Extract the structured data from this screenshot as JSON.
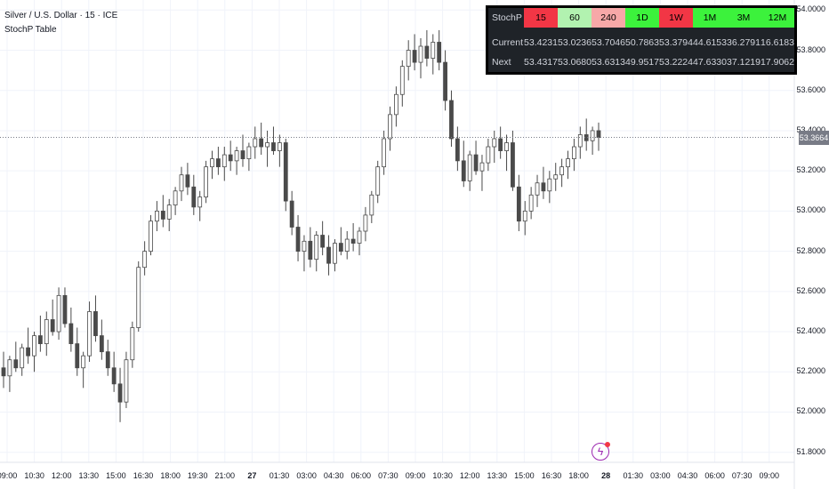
{
  "header": {
    "symbol": "Silver / U.S. Dollar · 15 · ICE",
    "indicator": "StochP Table"
  },
  "table": {
    "corner": "StochP",
    "timeframes": [
      {
        "label": "15",
        "color": "#f23645"
      },
      {
        "label": "60",
        "color": "#b2f2b0"
      },
      {
        "label": "240",
        "color": "#f7a8a8"
      },
      {
        "label": "1D",
        "color": "#3cf23c"
      },
      {
        "label": "1W",
        "color": "#f23645"
      },
      {
        "label": "1M",
        "color": "#3cf23c"
      },
      {
        "label": "3M",
        "color": "#3cf23c"
      },
      {
        "label": "12M",
        "color": "#3cf23c"
      }
    ],
    "rows": [
      {
        "label": "Current",
        "values": [
          "53.4231",
          "53.0236",
          "53.7046",
          "50.7863",
          "53.3794",
          "44.6153",
          "36.2791",
          "16.6183"
        ]
      },
      {
        "label": "Next",
        "values": [
          "53.4317",
          "53.0680",
          "53.6313",
          "49.9517",
          "53.2224",
          "47.6330",
          "37.1219",
          "17.9062"
        ]
      }
    ]
  },
  "price_axis": [
    "54.0000",
    "53.8000",
    "53.6000",
    "53.4000",
    "53.2000",
    "53.0000",
    "52.8000",
    "52.6000",
    "52.4000",
    "52.2000",
    "52.0000",
    "51.8000"
  ],
  "current_price": "53.3664",
  "time_axis": [
    "09:00",
    "10:30",
    "12:00",
    "13:30",
    "15:00",
    "16:30",
    "18:00",
    "19:30",
    "21:00",
    "27",
    "01:30",
    "03:00",
    "04:30",
    "06:00",
    "07:30",
    "09:00",
    "10:30",
    "12:00",
    "13:30",
    "15:00",
    "16:30",
    "18:00",
    "28",
    "01:30",
    "03:00",
    "04:30",
    "06:00",
    "07:30",
    "09:00"
  ],
  "chart_data": {
    "type": "candlestick",
    "ylim": [
      51.75,
      54.05
    ],
    "price_axis_ticks": [
      54.0,
      53.8,
      53.6,
      53.4,
      53.2,
      53.0,
      52.8,
      52.6,
      52.4,
      52.2,
      52.0,
      51.8
    ],
    "candles": [
      [
        52.22,
        52.3,
        52.12,
        52.18
      ],
      [
        52.18,
        52.28,
        52.1,
        52.26
      ],
      [
        52.26,
        52.35,
        52.2,
        52.22
      ],
      [
        52.22,
        52.34,
        52.18,
        52.32
      ],
      [
        52.32,
        52.42,
        52.24,
        52.28
      ],
      [
        52.28,
        52.4,
        52.2,
        52.38
      ],
      [
        52.38,
        52.48,
        52.3,
        52.34
      ],
      [
        52.34,
        52.5,
        52.28,
        52.46
      ],
      [
        52.46,
        52.56,
        52.38,
        52.4
      ],
      [
        52.4,
        52.62,
        52.36,
        52.58
      ],
      [
        52.58,
        52.62,
        52.42,
        52.44
      ],
      [
        52.44,
        52.52,
        52.3,
        52.34
      ],
      [
        52.34,
        52.42,
        52.18,
        52.22
      ],
      [
        52.22,
        52.3,
        52.12,
        52.28
      ],
      [
        52.28,
        52.55,
        52.25,
        52.5
      ],
      [
        52.5,
        52.58,
        52.35,
        52.38
      ],
      [
        52.38,
        52.46,
        52.26,
        52.3
      ],
      [
        52.3,
        52.36,
        52.18,
        52.22
      ],
      [
        52.22,
        52.3,
        52.1,
        52.14
      ],
      [
        52.14,
        52.22,
        51.95,
        52.05
      ],
      [
        52.05,
        52.3,
        52.02,
        52.26
      ],
      [
        52.26,
        52.45,
        52.22,
        52.42
      ],
      [
        52.42,
        52.75,
        52.4,
        52.72
      ],
      [
        52.72,
        52.85,
        52.68,
        52.8
      ],
      [
        52.8,
        52.98,
        52.78,
        52.95
      ],
      [
        52.95,
        53.05,
        52.9,
        53.0
      ],
      [
        53.0,
        53.08,
        52.92,
        52.96
      ],
      [
        52.96,
        53.06,
        52.9,
        53.03
      ],
      [
        53.03,
        53.12,
        52.98,
        53.1
      ],
      [
        53.1,
        53.22,
        53.05,
        53.18
      ],
      [
        53.18,
        53.24,
        53.08,
        53.12
      ],
      [
        53.12,
        53.18,
        52.98,
        53.02
      ],
      [
        53.02,
        53.1,
        52.95,
        53.07
      ],
      [
        53.07,
        53.25,
        53.04,
        53.22
      ],
      [
        53.22,
        53.3,
        53.16,
        53.26
      ],
      [
        53.26,
        53.32,
        53.18,
        53.22
      ],
      [
        53.22,
        53.32,
        53.15,
        53.28
      ],
      [
        53.28,
        53.35,
        53.2,
        53.25
      ],
      [
        53.25,
        53.32,
        53.18,
        53.3
      ],
      [
        53.3,
        53.38,
        53.22,
        53.26
      ],
      [
        53.26,
        53.34,
        53.2,
        53.32
      ],
      [
        53.32,
        53.42,
        53.26,
        53.36
      ],
      [
        53.36,
        53.44,
        53.28,
        53.32
      ],
      [
        53.32,
        53.4,
        53.22,
        53.34
      ],
      [
        53.34,
        53.42,
        53.28,
        53.3
      ],
      [
        53.3,
        53.38,
        53.22,
        53.34
      ],
      [
        53.34,
        53.36,
        53.0,
        53.05
      ],
      [
        53.05,
        53.1,
        52.88,
        52.92
      ],
      [
        52.92,
        52.98,
        52.75,
        52.8
      ],
      [
        52.8,
        52.88,
        52.7,
        52.85
      ],
      [
        52.85,
        52.92,
        52.72,
        52.76
      ],
      [
        52.76,
        52.9,
        52.7,
        52.88
      ],
      [
        52.88,
        52.95,
        52.78,
        52.82
      ],
      [
        52.82,
        52.88,
        52.68,
        52.74
      ],
      [
        52.74,
        52.86,
        52.7,
        52.84
      ],
      [
        52.84,
        52.92,
        52.78,
        52.8
      ],
      [
        52.8,
        52.9,
        52.76,
        52.86
      ],
      [
        52.86,
        52.94,
        52.8,
        52.84
      ],
      [
        52.84,
        52.92,
        52.78,
        52.9
      ],
      [
        52.9,
        53.02,
        52.85,
        52.98
      ],
      [
        52.98,
        53.1,
        52.94,
        53.08
      ],
      [
        53.08,
        53.25,
        53.04,
        53.22
      ],
      [
        53.22,
        53.4,
        53.18,
        53.36
      ],
      [
        53.36,
        53.52,
        53.3,
        53.48
      ],
      [
        53.48,
        53.62,
        53.42,
        53.58
      ],
      [
        53.58,
        53.75,
        53.52,
        53.72
      ],
      [
        53.72,
        53.85,
        53.65,
        53.8
      ],
      [
        53.8,
        53.88,
        53.7,
        53.74
      ],
      [
        53.74,
        53.86,
        53.66,
        53.82
      ],
      [
        53.82,
        53.9,
        53.72,
        53.76
      ],
      [
        53.76,
        53.88,
        53.68,
        53.84
      ],
      [
        53.84,
        53.9,
        53.7,
        53.74
      ],
      [
        53.74,
        53.8,
        53.5,
        53.55
      ],
      [
        53.55,
        53.6,
        53.32,
        53.36
      ],
      [
        53.36,
        53.42,
        53.2,
        53.25
      ],
      [
        53.25,
        53.35,
        53.12,
        53.15
      ],
      [
        53.15,
        53.3,
        53.1,
        53.28
      ],
      [
        53.28,
        53.35,
        53.18,
        53.2
      ],
      [
        53.2,
        53.28,
        53.1,
        53.24
      ],
      [
        53.24,
        53.36,
        53.2,
        53.32
      ],
      [
        53.32,
        53.4,
        53.24,
        53.36
      ],
      [
        53.36,
        53.42,
        53.26,
        53.3
      ],
      [
        53.3,
        53.38,
        53.2,
        53.34
      ],
      [
        53.34,
        53.4,
        53.1,
        53.12
      ],
      [
        53.12,
        53.18,
        52.9,
        52.95
      ],
      [
        52.95,
        53.05,
        52.88,
        53.0
      ],
      [
        53.0,
        53.12,
        52.96,
        53.08
      ],
      [
        53.08,
        53.18,
        53.02,
        53.14
      ],
      [
        53.14,
        53.22,
        53.06,
        53.1
      ],
      [
        53.1,
        53.2,
        53.04,
        53.16
      ],
      [
        53.16,
        53.24,
        53.1,
        53.18
      ],
      [
        53.18,
        53.26,
        53.12,
        53.22
      ],
      [
        53.22,
        53.3,
        53.16,
        53.26
      ],
      [
        53.26,
        53.36,
        53.2,
        53.32
      ],
      [
        53.32,
        53.42,
        53.26,
        53.38
      ],
      [
        53.38,
        53.46,
        53.3,
        53.35
      ],
      [
        53.35,
        53.42,
        53.28,
        53.4
      ],
      [
        53.4,
        53.44,
        53.3,
        53.3664
      ]
    ]
  }
}
